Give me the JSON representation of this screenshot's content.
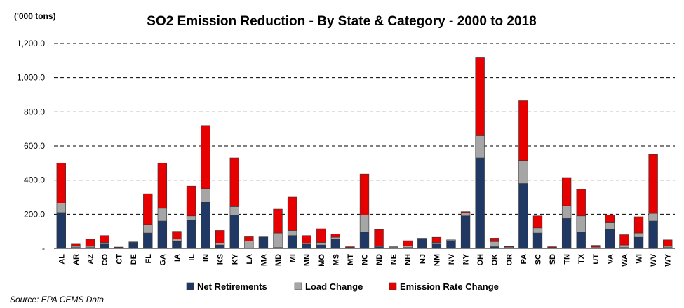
{
  "chart_data": {
    "type": "bar",
    "stacked": true,
    "title": "SO2 Emission Reduction - By State & Category - 2000 to 2018",
    "ylabel": "('000 tons)",
    "ylim": [
      0,
      1200
    ],
    "yticks": [
      0,
      200,
      400,
      600,
      800,
      1000,
      1200
    ],
    "ytick_labels": [
      "-",
      "200.0",
      "400.0",
      "600.0",
      "800.0",
      "1,000.0",
      "1,200.0"
    ],
    "grid": true,
    "legend_position": "bottom",
    "categories": [
      "AL",
      "AR",
      "AZ",
      "CO",
      "CT",
      "DE",
      "FL",
      "GA",
      "IA",
      "IL",
      "IN",
      "KS",
      "KY",
      "LA",
      "MA",
      "MD",
      "MI",
      "MN",
      "MO",
      "MS",
      "MT",
      "NC",
      "ND",
      "NE",
      "NH",
      "NJ",
      "NM",
      "NV",
      "NY",
      "OH",
      "OK",
      "OR",
      "PA",
      "SC",
      "SD",
      "TN",
      "TX",
      "UT",
      "VA",
      "WA",
      "WI",
      "WV",
      "WY"
    ],
    "series": [
      {
        "name": "Net Retirements",
        "color": "#1f3864",
        "values": [
          210,
          5,
          5,
          25,
          3,
          35,
          90,
          160,
          40,
          165,
          270,
          20,
          195,
          3,
          65,
          5,
          75,
          25,
          20,
          55,
          3,
          95,
          10,
          5,
          5,
          55,
          25,
          45,
          190,
          530,
          10,
          5,
          380,
          90,
          3,
          175,
          95,
          3,
          110,
          5,
          65,
          160,
          5
        ]
      },
      {
        "name": "Load Change",
        "color": "#a6a6a6",
        "values": [
          55,
          8,
          8,
          10,
          2,
          3,
          50,
          75,
          15,
          25,
          80,
          10,
          50,
          40,
          2,
          85,
          30,
          5,
          15,
          10,
          2,
          100,
          5,
          5,
          10,
          5,
          10,
          5,
          20,
          130,
          30,
          5,
          135,
          30,
          2,
          75,
          95,
          5,
          40,
          15,
          25,
          45,
          8
        ]
      },
      {
        "name": "Emission Rate Change",
        "color": "#e60000",
        "values": [
          235,
          12,
          40,
          40,
          3,
          0,
          180,
          265,
          45,
          175,
          370,
          75,
          285,
          25,
          0,
          140,
          195,
          45,
          80,
          20,
          5,
          240,
          95,
          0,
          30,
          0,
          30,
          0,
          5,
          460,
          20,
          5,
          350,
          70,
          5,
          165,
          155,
          10,
          45,
          60,
          95,
          345,
          37
        ]
      }
    ],
    "source": "Source: EPA CEMS Data"
  }
}
